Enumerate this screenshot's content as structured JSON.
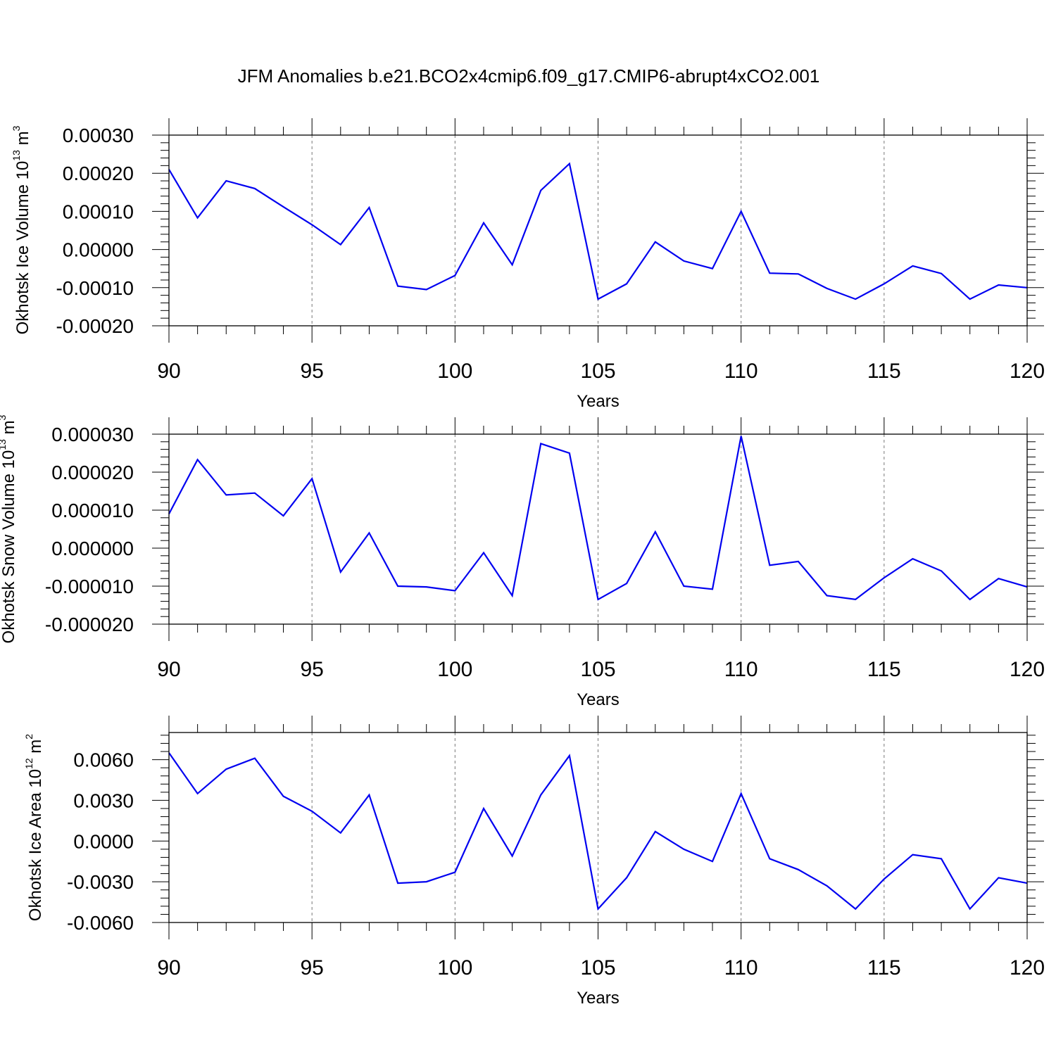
{
  "chart_data": [
    {
      "type": "line",
      "panel": "top",
      "title": "JFM Anomalies b.e21.BCO2x4cmip6.f09_g17.CMIP6-abrupt4xCO2.001",
      "ylabel": {
        "text": "Okhotsk Ice Volume 10",
        "exp": "13",
        "unit": " m",
        "unit_exp": "3"
      },
      "xlabel": "Years",
      "xlim": [
        90,
        120
      ],
      "ylim": [
        -0.0002,
        0.0003
      ],
      "yticks": [
        -0.0002,
        -0.0001,
        0.0,
        0.0001,
        0.0002,
        0.0003
      ],
      "ytick_labels": [
        "-0.00020",
        "-0.00010",
        "0.00000",
        "0.00010",
        "0.00020",
        "0.00030"
      ],
      "xticks": [
        90,
        95,
        100,
        105,
        110,
        115,
        120
      ],
      "xtick_labels": [
        "90",
        "95",
        "100",
        "105",
        "110",
        "115",
        "120"
      ],
      "color": "#0000f0",
      "x": [
        90,
        91,
        92,
        93,
        94,
        95,
        96,
        97,
        98,
        99,
        100,
        101,
        102,
        103,
        104,
        105,
        106,
        107,
        108,
        109,
        110,
        111,
        112,
        113,
        114,
        115,
        116,
        117,
        118,
        119,
        120
      ],
      "values": [
        0.00021,
        8.3e-05,
        0.00018,
        0.00016,
        0.000112,
        6.5e-05,
        1.3e-05,
        0.00011,
        -9.6e-05,
        -0.000105,
        -6.8e-05,
        7e-05,
        -4e-05,
        0.000155,
        0.000225,
        -0.00013,
        -9e-05,
        2e-05,
        -3e-05,
        -5e-05,
        0.0001,
        -6.2e-05,
        -6.4e-05,
        -0.000102,
        -0.00013,
        -9e-05,
        -4.3e-05,
        -6.3e-05,
        -0.00013,
        -9.3e-05,
        -0.0001
      ]
    },
    {
      "type": "line",
      "panel": "middle",
      "ylabel": {
        "text": "Okhotsk Snow Volume 10",
        "exp": "13",
        "unit": " m",
        "unit_exp": "3"
      },
      "xlabel": "Years",
      "xlim": [
        90,
        120
      ],
      "ylim": [
        -2e-05,
        3e-05
      ],
      "yticks": [
        -2e-05,
        -1e-05,
        0.0,
        1e-05,
        2e-05,
        3e-05
      ],
      "ytick_labels": [
        "-0.000020",
        "-0.000010",
        "0.000000",
        "0.000010",
        "0.000020",
        "0.000030"
      ],
      "xticks": [
        90,
        95,
        100,
        105,
        110,
        115,
        120
      ],
      "xtick_labels": [
        "90",
        "95",
        "100",
        "105",
        "110",
        "115",
        "120"
      ],
      "color": "#0000f0",
      "x": [
        90,
        91,
        92,
        93,
        94,
        95,
        96,
        97,
        98,
        99,
        100,
        101,
        102,
        103,
        104,
        105,
        106,
        107,
        108,
        109,
        110,
        111,
        112,
        113,
        114,
        115,
        116,
        117,
        118,
        119,
        120
      ],
      "values": [
        9e-06,
        2.33e-05,
        1.4e-05,
        1.45e-05,
        8.5e-06,
        1.83e-05,
        -6.3e-06,
        4e-06,
        -1e-05,
        -1.02e-05,
        -1.12e-05,
        -1.2e-06,
        -1.25e-05,
        2.75e-05,
        2.5e-05,
        -1.35e-05,
        -9.3e-06,
        4.3e-06,
        -1e-05,
        -1.08e-05,
        2.95e-05,
        -4.5e-06,
        -3.5e-06,
        -1.25e-05,
        -1.35e-05,
        -7.8e-06,
        -2.8e-06,
        -6e-06,
        -1.35e-05,
        -8e-06,
        -1.02e-05
      ]
    },
    {
      "type": "line",
      "panel": "bottom",
      "ylabel": {
        "text": "Okhotsk Ice Area 10",
        "exp": "12",
        "unit": " m",
        "unit_exp": "2"
      },
      "xlabel": "Years",
      "xlim": [
        90,
        120
      ],
      "ylim": [
        -0.006,
        0.008
      ],
      "yticks": [
        -0.006,
        -0.003,
        0.0,
        0.003,
        0.006
      ],
      "ytick_labels": [
        "-0.0060",
        "-0.0030",
        "0.0000",
        "0.0030",
        "0.0060"
      ],
      "xticks": [
        90,
        95,
        100,
        105,
        110,
        115,
        120
      ],
      "xtick_labels": [
        "90",
        "95",
        "100",
        "105",
        "110",
        "115",
        "120"
      ],
      "color": "#0000f0",
      "x": [
        90,
        91,
        92,
        93,
        94,
        95,
        96,
        97,
        98,
        99,
        100,
        101,
        102,
        103,
        104,
        105,
        106,
        107,
        108,
        109,
        110,
        111,
        112,
        113,
        114,
        115,
        116,
        117,
        118,
        119,
        120
      ],
      "values": [
        0.0065,
        0.0035,
        0.0053,
        0.0061,
        0.0033,
        0.0022,
        0.0006,
        0.0034,
        -0.0031,
        -0.003,
        -0.0023,
        0.0024,
        -0.0011,
        0.0034,
        0.0063,
        -0.005,
        -0.0027,
        0.0007,
        -0.0006,
        -0.0015,
        0.0035,
        -0.0013,
        -0.0021,
        -0.0033,
        -0.005,
        -0.0028,
        -0.001,
        -0.0013,
        -0.005,
        -0.0027,
        -0.0031
      ]
    }
  ]
}
